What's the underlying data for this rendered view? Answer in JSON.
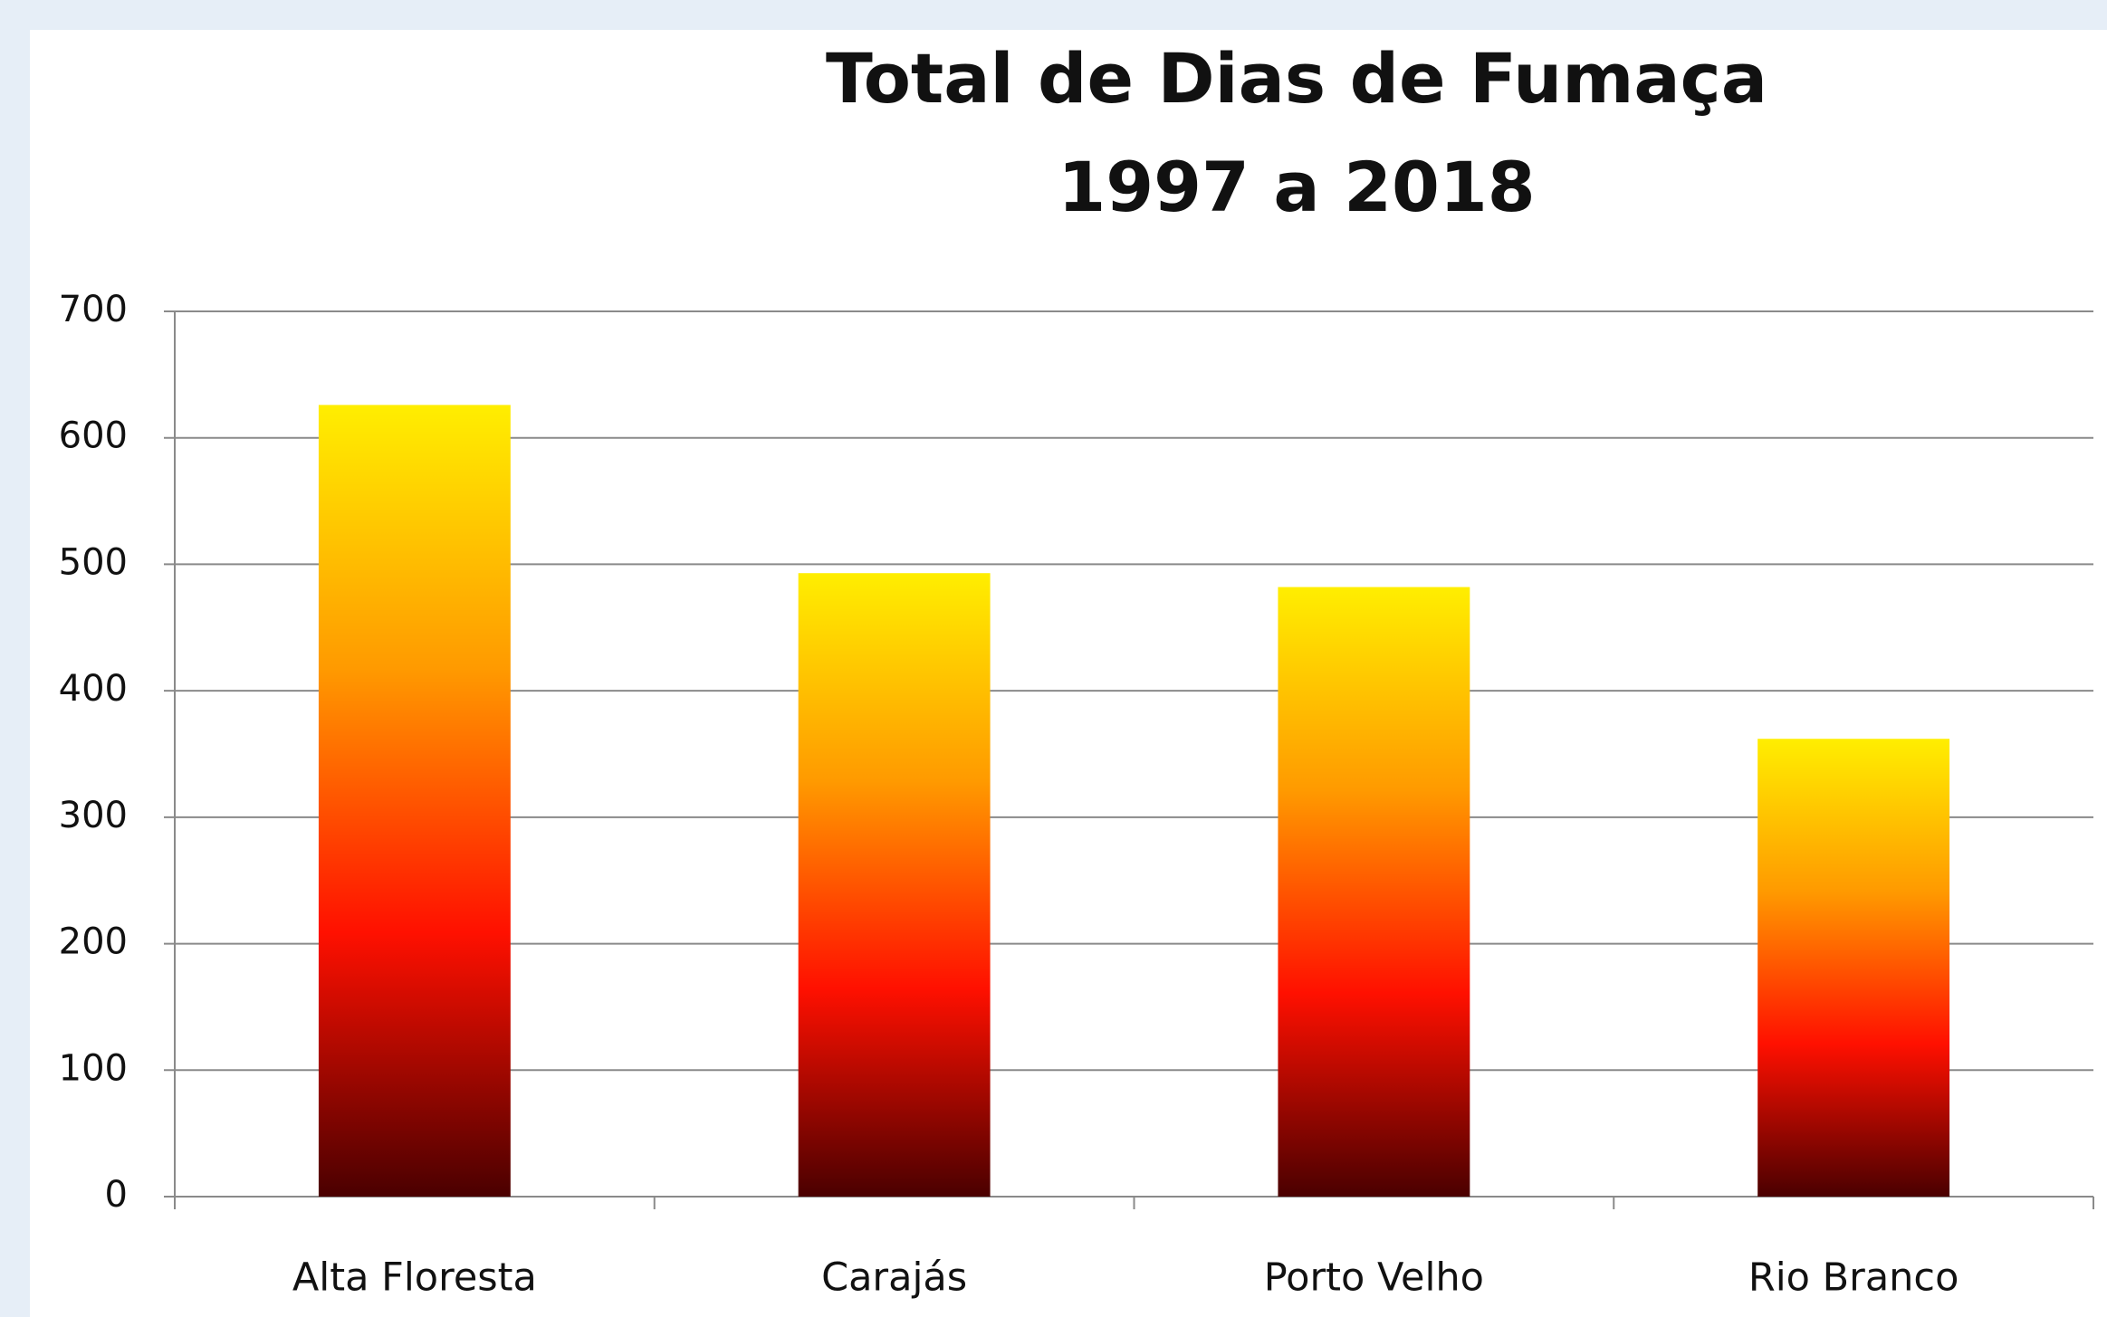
{
  "chart_data": {
    "type": "bar",
    "title": [
      "Total de Dias de Fumaça",
      "1997 a 2018"
    ],
    "categories": [
      "Alta Floresta",
      "Carajás",
      "Porto Velho",
      "Rio Branco"
    ],
    "values": [
      626,
      493,
      482,
      362
    ],
    "gradient": [
      "#ffee00",
      "#ff9a00",
      "#ff1000",
      "#4a0000"
    ],
    "ylim": [
      0,
      700
    ],
    "yticks": [
      0,
      100,
      200,
      300,
      400,
      500,
      600,
      700
    ],
    "grid": true
  }
}
